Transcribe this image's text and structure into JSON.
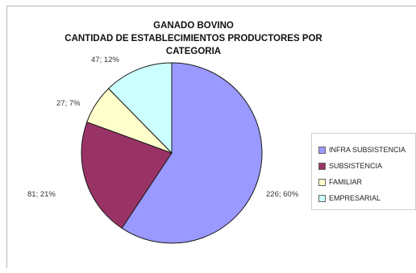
{
  "chart_data": {
    "type": "pie",
    "title_line1": "GANADO BOVINO",
    "title_line2": "CANTIDAD DE ESTABLECIMIENTOS PRODUCTORES POR",
    "title_line3": "CATEGORIA",
    "slices": [
      {
        "name": "INFRA SUBSISTENCIA",
        "value": 226,
        "percent": 60,
        "label": "226; 60%",
        "color": "#9999ff"
      },
      {
        "name": "SUBSISTENCIA",
        "value": 81,
        "percent": 21,
        "label": "81; 21%",
        "color": "#993366"
      },
      {
        "name": "FAMILIAR",
        "value": 27,
        "percent": 7,
        "label": "27; 7%",
        "color": "#ffffcc"
      },
      {
        "name": "EMPRESARIAL",
        "value": 47,
        "percent": 12,
        "label": "47; 12%",
        "color": "#ccffff"
      }
    ],
    "legend_position": "right"
  }
}
